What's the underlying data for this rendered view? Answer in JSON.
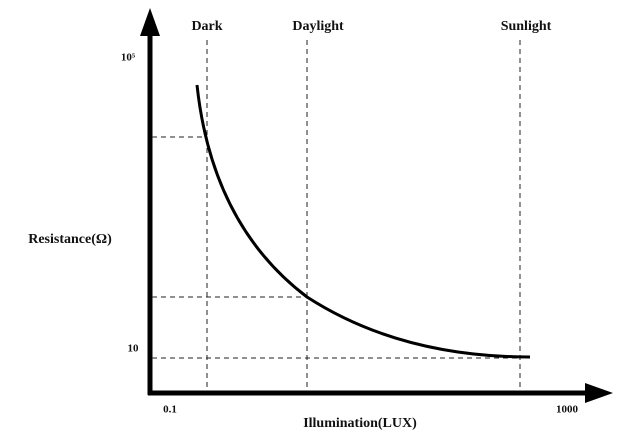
{
  "markers": [
    "Dark",
    "Daylight",
    "Sunlight"
  ],
  "y_axis": {
    "label": "Resistance(Ω)",
    "ticks": [
      "10⁵",
      "10"
    ]
  },
  "x_axis": {
    "label": "Illumination(LUX)",
    "ticks": [
      "0.1",
      "1000"
    ]
  }
}
